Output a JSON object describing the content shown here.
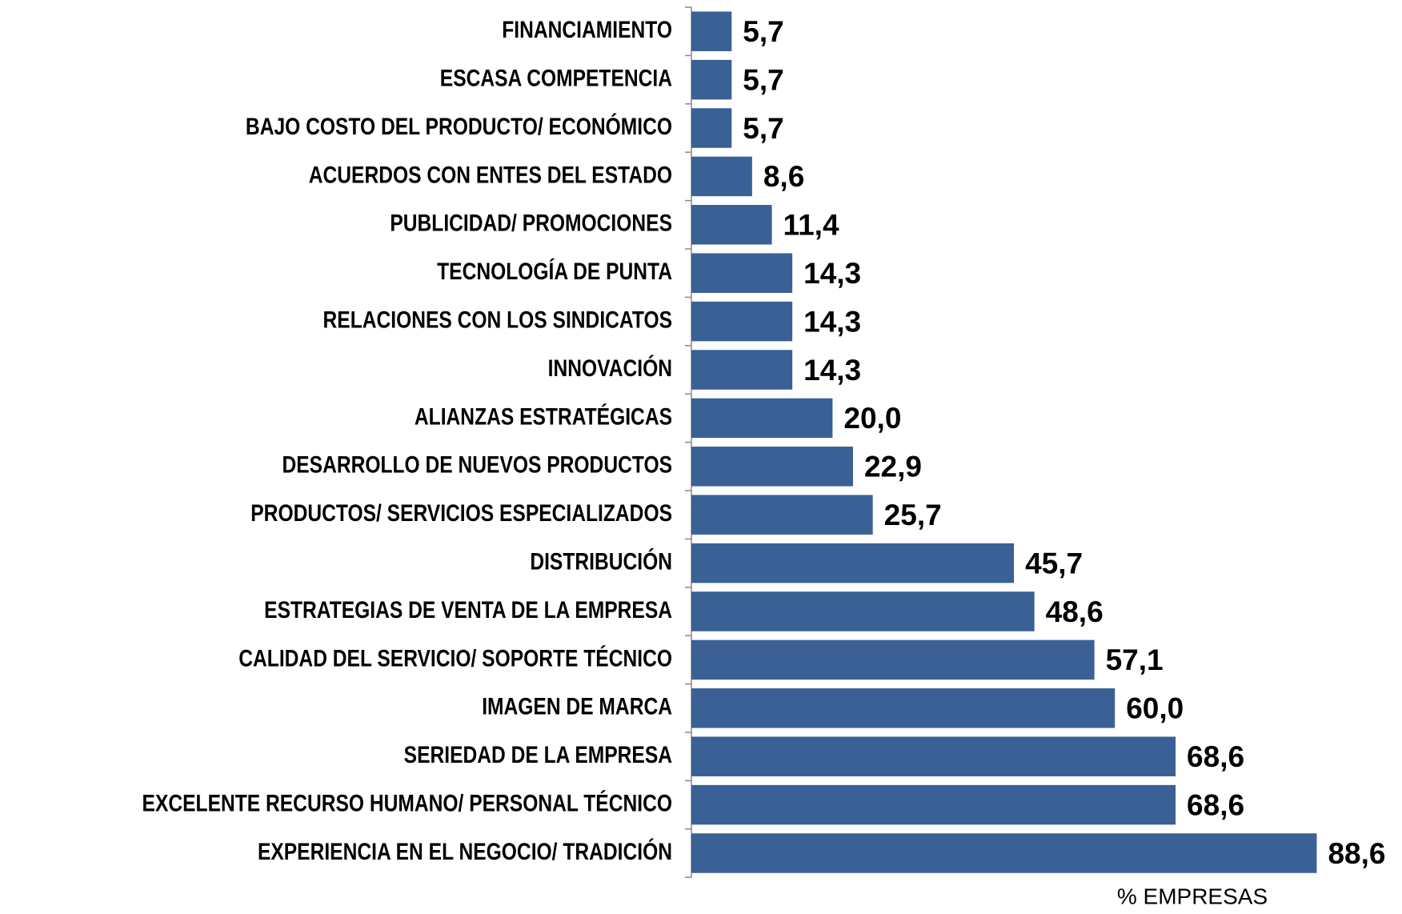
{
  "chart_data": {
    "type": "bar",
    "orientation": "horizontal",
    "categories": [
      "FINANCIAMIENTO",
      "ESCASA COMPETENCIA",
      "BAJO COSTO DEL PRODUCTO/ ECONÓMICO",
      "ACUERDOS CON ENTES DEL ESTADO",
      "PUBLICIDAD/ PROMOCIONES",
      "TECNOLOGÍA DE PUNTA",
      "RELACIONES CON LOS SINDICATOS",
      "INNOVACIÓN",
      "ALIANZAS ESTRATÉGICAS",
      "DESARROLLO DE NUEVOS PRODUCTOS",
      "PRODUCTOS/ SERVICIOS ESPECIALIZADOS",
      "DISTRIBUCIÓN",
      "ESTRATEGIAS DE VENTA DE LA EMPRESA",
      "CALIDAD DEL SERVICIO/ SOPORTE TÉCNICO",
      "IMAGEN DE MARCA",
      "SERIEDAD DE LA EMPRESA",
      "EXCELENTE RECURSO HUMANO/ PERSONAL TÉCNICO",
      "EXPERIENCIA EN EL NEGOCIO/ TRADICIÓN"
    ],
    "values": [
      5.7,
      5.7,
      5.7,
      8.6,
      11.4,
      14.3,
      14.3,
      14.3,
      20.0,
      22.9,
      25.7,
      45.7,
      48.6,
      57.1,
      60.0,
      68.6,
      68.6,
      88.6
    ],
    "value_labels": [
      "5,7",
      "5,7",
      "5,7",
      "8,6",
      "11,4",
      "14,3",
      "14,3",
      "14,3",
      "20,0",
      "22,9",
      "25,7",
      "45,7",
      "48,6",
      "57,1",
      "60,0",
      "68,6",
      "68,6",
      "88,6"
    ],
    "color": "#3a6095",
    "xlim": [
      0,
      100
    ],
    "xlabel": "% EMPRESAS"
  }
}
